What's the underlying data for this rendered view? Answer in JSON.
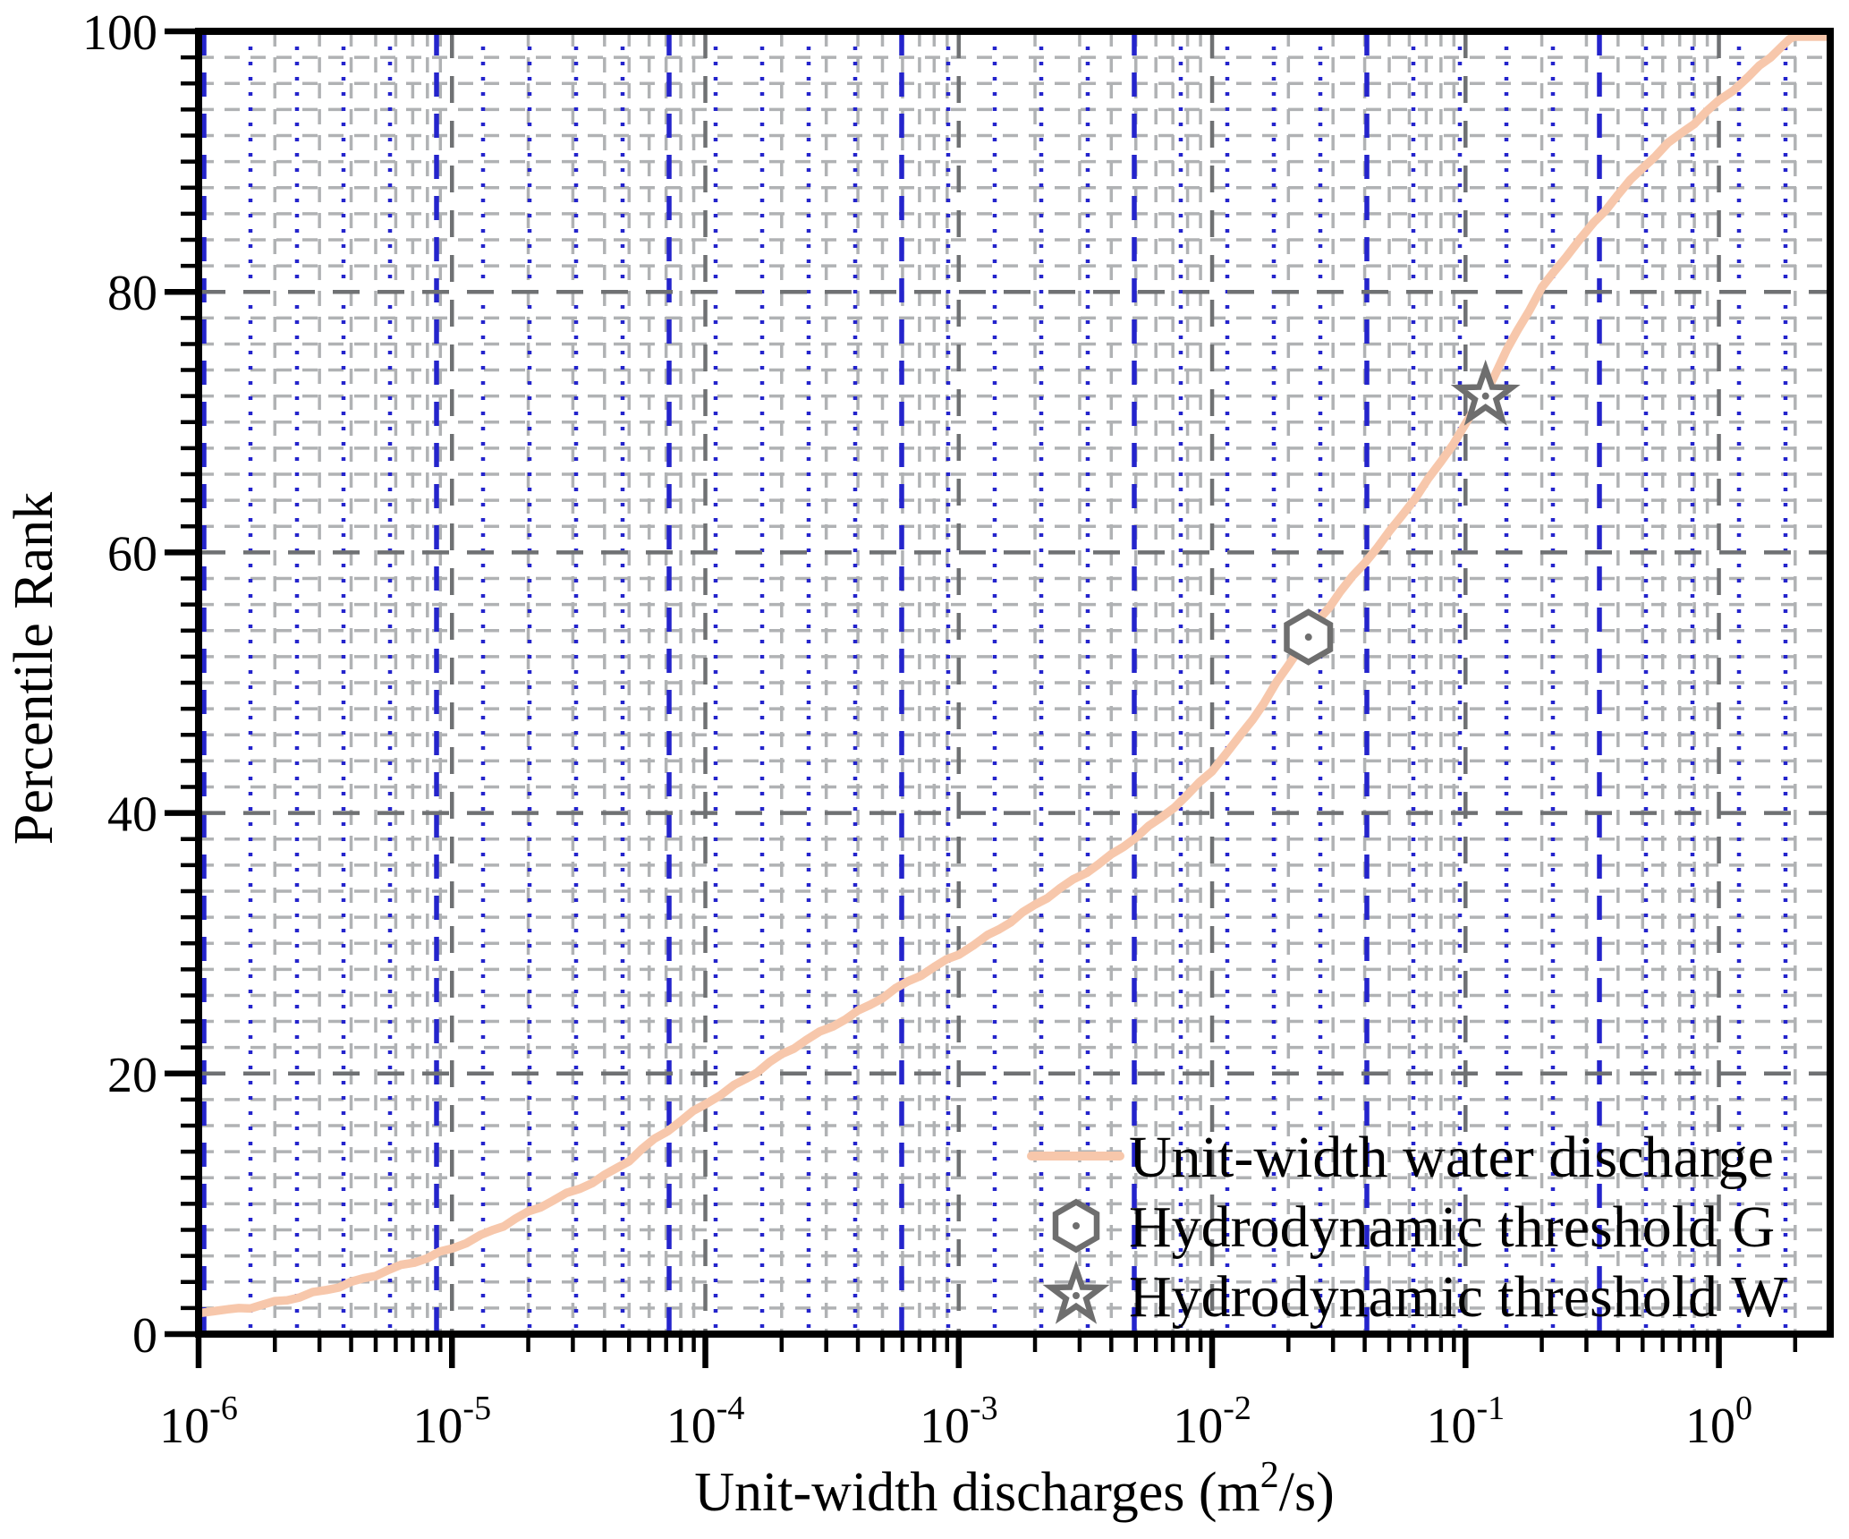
{
  "figure": {
    "background": "#ffffff",
    "frame_color": "#000000"
  },
  "chart_data": {
    "type": "line",
    "title": "",
    "xlabel": "Unit-width discharges (m2/s)",
    "xlabel_parts": {
      "prefix": "Unit-width discharges (m",
      "sup": "2",
      "suffix": "/s)"
    },
    "ylabel": "Percentile Rank",
    "x_scale": "log",
    "xlim": [
      1e-06,
      2.75
    ],
    "ylim": [
      0,
      100
    ],
    "x_tick_base": "10",
    "x_tick_exponents": [
      -6,
      -5,
      -4,
      -3,
      -2,
      -1,
      0
    ],
    "y_tick_labels": [
      "0",
      "20",
      "40",
      "60",
      "80",
      "100"
    ],
    "y_tick_values": [
      0,
      20,
      40,
      60,
      80,
      100
    ],
    "grid": {
      "minor_color": "#b0b2b4",
      "major_color": "#6f7173",
      "blue_color": "#2424cc",
      "y_minor_step": 2,
      "y_major_step": 20
    },
    "series": [
      {
        "name": "Unit-width water discharge",
        "color": "#f7c7ab",
        "points": [
          [
            1e-06,
            1.6
          ],
          [
            1.3e-06,
            1.9
          ],
          [
            1.6e-06,
            2.1
          ],
          [
            2e-06,
            2.4
          ],
          [
            2.5e-06,
            2.8
          ],
          [
            3.2e-06,
            3.4
          ],
          [
            4e-06,
            4.0
          ],
          [
            5e-06,
            4.6
          ],
          [
            6.3e-06,
            5.2
          ],
          [
            8e-06,
            5.8
          ],
          [
            1e-05,
            6.6
          ],
          [
            1.3e-05,
            7.6
          ],
          [
            1.6e-05,
            8.4
          ],
          [
            2e-05,
            9.3
          ],
          [
            2.5e-05,
            10.2
          ],
          [
            3.2e-05,
            11.2
          ],
          [
            4e-05,
            12.2
          ],
          [
            5e-05,
            13.4
          ],
          [
            6.3e-05,
            14.9
          ],
          [
            8e-05,
            16.3
          ],
          [
            0.0001,
            17.7
          ],
          [
            0.00013,
            19.1
          ],
          [
            0.00016,
            20.2
          ],
          [
            0.0002,
            21.4
          ],
          [
            0.00025,
            22.5
          ],
          [
            0.00032,
            23.7
          ],
          [
            0.0004,
            24.8
          ],
          [
            0.0005,
            25.9
          ],
          [
            0.00063,
            27.0
          ],
          [
            0.0008,
            28.1
          ],
          [
            0.001,
            29.2
          ],
          [
            0.0013,
            30.6
          ],
          [
            0.0016,
            31.7
          ],
          [
            0.002,
            32.9
          ],
          [
            0.0025,
            34.1
          ],
          [
            0.0032,
            35.5
          ],
          [
            0.004,
            36.8
          ],
          [
            0.005,
            38.2
          ],
          [
            0.0063,
            39.6
          ],
          [
            0.008,
            41.3
          ],
          [
            0.01,
            43.3
          ],
          [
            0.013,
            46.0
          ],
          [
            0.016,
            48.5
          ],
          [
            0.02,
            51.3
          ],
          [
            0.024,
            53.7
          ],
          [
            0.032,
            57.0
          ],
          [
            0.04,
            59.3
          ],
          [
            0.05,
            61.5
          ],
          [
            0.063,
            64.1
          ],
          [
            0.08,
            66.9
          ],
          [
            0.1,
            69.9
          ],
          [
            0.12,
            72.3
          ],
          [
            0.16,
            77.0
          ],
          [
            0.2,
            80.2
          ],
          [
            0.25,
            82.8
          ],
          [
            0.32,
            85.3
          ],
          [
            0.4,
            87.5
          ],
          [
            0.5,
            89.5
          ],
          [
            0.63,
            91.3
          ],
          [
            0.8,
            93.0
          ],
          [
            1,
            94.7
          ],
          [
            1.3,
            96.5
          ],
          [
            1.6,
            98.0
          ],
          [
            1.9,
            99.4
          ],
          [
            2.05,
            100
          ],
          [
            2.75,
            100
          ]
        ]
      }
    ],
    "markers": [
      {
        "name": "Hydrodynamic threshold G",
        "shape": "hexagon",
        "x": 0.024,
        "y": 53.5,
        "stroke": "#6e6e6e",
        "fill": "#ffffff"
      },
      {
        "name": "Hydrodynamic threshold W",
        "shape": "star",
        "x": 0.12,
        "y": 72.0,
        "stroke": "#6e6e6e",
        "fill": "#ffffff"
      }
    ],
    "legend": {
      "position": "bottom-right",
      "entries": [
        {
          "symbol": "line",
          "label": "Unit-width water discharge"
        },
        {
          "symbol": "hexagon",
          "label": "Hydrodynamic threshold G"
        },
        {
          "symbol": "star",
          "label": "Hydrodynamic threshold W"
        }
      ]
    }
  }
}
